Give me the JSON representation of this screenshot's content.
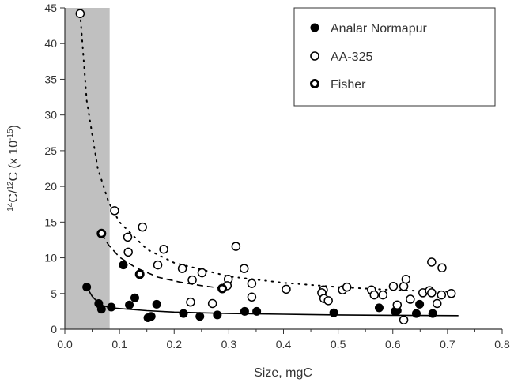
{
  "chart_data": {
    "type": "scatter",
    "title": "",
    "xlabel": "Size, mgC",
    "ylabel_parts": {
      "sup1": "14",
      "c1": "C/",
      "sup2": "12",
      "c2": "C (x 10",
      "sup3": "-15",
      "c3": ")"
    },
    "xlim": [
      0.0,
      0.8
    ],
    "ylim": [
      0,
      45
    ],
    "x_ticks": [
      "0.0",
      "0.1",
      "0.2",
      "0.3",
      "0.4",
      "0.5",
      "0.6",
      "0.7",
      "0.8"
    ],
    "y_ticks": [
      "0",
      "5",
      "10",
      "15",
      "20",
      "25",
      "30",
      "35",
      "40",
      "45"
    ],
    "grid": false,
    "legend_placement": "top-right",
    "shaded_region": {
      "x": [
        0.0,
        0.082
      ],
      "color": "#c0c0c0"
    },
    "series": [
      {
        "name": "Analar Normapur",
        "marker": "filled-circle",
        "x": [
          0.04,
          0.062,
          0.067,
          0.085,
          0.107,
          0.118,
          0.128,
          0.152,
          0.158,
          0.168,
          0.217,
          0.247,
          0.279,
          0.329,
          0.351,
          0.492,
          0.575,
          0.604,
          0.608,
          0.643,
          0.649,
          0.673
        ],
        "y": [
          5.9,
          3.6,
          2.8,
          3.1,
          9.0,
          3.4,
          4.4,
          1.6,
          1.8,
          3.5,
          2.2,
          1.8,
          2.0,
          2.5,
          2.5,
          2.3,
          3.0,
          2.5,
          2.6,
          2.2,
          3.5,
          2.2
        ]
      },
      {
        "name": "AA-325",
        "marker": "open-circle",
        "x": [
          0.028,
          0.091,
          0.142,
          0.115,
          0.116,
          0.181,
          0.17,
          0.215,
          0.251,
          0.233,
          0.23,
          0.27,
          0.299,
          0.297,
          0.313,
          0.328,
          0.342,
          0.342,
          0.405,
          0.473,
          0.47,
          0.474,
          0.482,
          0.508,
          0.516,
          0.561,
          0.566,
          0.582,
          0.601,
          0.62,
          0.624,
          0.632,
          0.608,
          0.62,
          0.655,
          0.667,
          0.671,
          0.671,
          0.69,
          0.681,
          0.689,
          0.707
        ],
        "y": [
          44.2,
          16.6,
          14.3,
          12.9,
          10.8,
          11.2,
          9.0,
          8.5,
          7.9,
          6.9,
          3.8,
          3.6,
          7.0,
          6.1,
          11.6,
          8.5,
          6.4,
          4.5,
          5.6,
          5.5,
          5.1,
          4.3,
          4.0,
          5.5,
          5.9,
          5.5,
          4.8,
          4.8,
          6.0,
          6.0,
          7.0,
          4.2,
          3.4,
          1.3,
          5.1,
          5.4,
          5.1,
          9.4,
          8.6,
          3.6,
          4.8,
          5.0
        ]
      },
      {
        "name": "Fisher",
        "marker": "dotted-circle",
        "x": [
          0.067,
          0.137,
          0.288
        ],
        "y": [
          13.4,
          7.7,
          5.7
        ]
      }
    ],
    "trend_lines": [
      {
        "for": "AA-325",
        "style": "dotted",
        "x": [
          0.028,
          0.04,
          0.06,
          0.08,
          0.1,
          0.15,
          0.2,
          0.3,
          0.4,
          0.5,
          0.6,
          0.72
        ],
        "y": [
          44.2,
          32.0,
          22.6,
          17.8,
          15.0,
          11.2,
          9.3,
          7.4,
          6.5,
          5.9,
          5.5,
          5.2
        ]
      },
      {
        "for": "Fisher",
        "style": "dashed",
        "x": [
          0.067,
          0.08,
          0.1,
          0.13,
          0.17,
          0.21,
          0.25,
          0.29
        ],
        "y": [
          13.4,
          11.8,
          10.1,
          8.6,
          7.3,
          6.6,
          6.1,
          5.7
        ]
      },
      {
        "for": "Analar Normapur",
        "style": "solid",
        "x": [
          0.04,
          0.05,
          0.06,
          0.07,
          0.085,
          0.1,
          0.15,
          0.2,
          0.3,
          0.4,
          0.5,
          0.6,
          0.72
        ],
        "y": [
          5.9,
          4.6,
          3.8,
          3.3,
          3.0,
          2.9,
          2.6,
          2.4,
          2.2,
          2.1,
          2.0,
          1.95,
          1.9
        ]
      }
    ]
  }
}
